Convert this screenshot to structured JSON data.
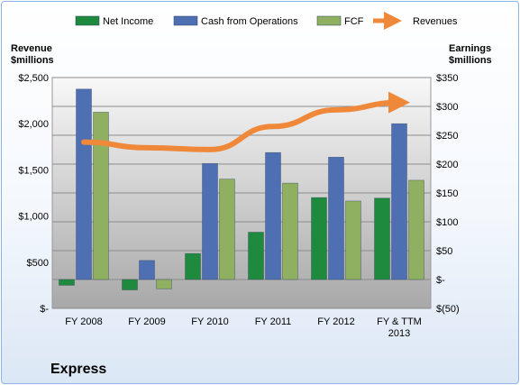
{
  "chart_data": {
    "type": "bar",
    "company": "Express",
    "categories": [
      [
        "FY 2008"
      ],
      [
        "FY 2009"
      ],
      [
        "FY 2010"
      ],
      [
        "FY 2011"
      ],
      [
        "FY 2012"
      ],
      [
        "FY & TTM",
        "2013"
      ]
    ],
    "left_axis": {
      "title": [
        "Revenue",
        "$millions"
      ],
      "range": [
        0,
        2500
      ],
      "ticks": [
        0,
        500,
        1000,
        1500,
        2000,
        2500
      ],
      "tick_labels": [
        "$-",
        "$500",
        "$1,000",
        "$1,500",
        "$2,000",
        "$2,500"
      ]
    },
    "right_axis": {
      "title": [
        "Earnings",
        "$millions"
      ],
      "range": [
        -50,
        350
      ],
      "ticks": [
        -50,
        0,
        50,
        100,
        150,
        200,
        250,
        300,
        350
      ],
      "tick_labels": [
        "$(50)",
        "$-",
        "$50",
        "$100",
        "$150",
        "$200",
        "$250",
        "$300",
        "$350"
      ]
    },
    "series": [
      {
        "name": "Net Income",
        "axis": "right",
        "color": "#1e8a3e",
        "values": [
          -10,
          -18,
          45,
          82,
          142,
          141
        ]
      },
      {
        "name": "Cash from Operations",
        "axis": "right",
        "color": "#4f6fb3",
        "values": [
          330,
          33,
          201,
          220,
          212,
          270
        ]
      },
      {
        "name": "FCF",
        "axis": "right",
        "color": "#8fb060",
        "values": [
          290,
          -16,
          174,
          167,
          136,
          172
        ]
      },
      {
        "name": "Revenues",
        "axis": "left",
        "color": "#f0883a",
        "type": "line",
        "values": [
          1800,
          1740,
          1720,
          1970,
          2150,
          2230
        ]
      }
    ],
    "legend_position": "top",
    "grid": true
  }
}
